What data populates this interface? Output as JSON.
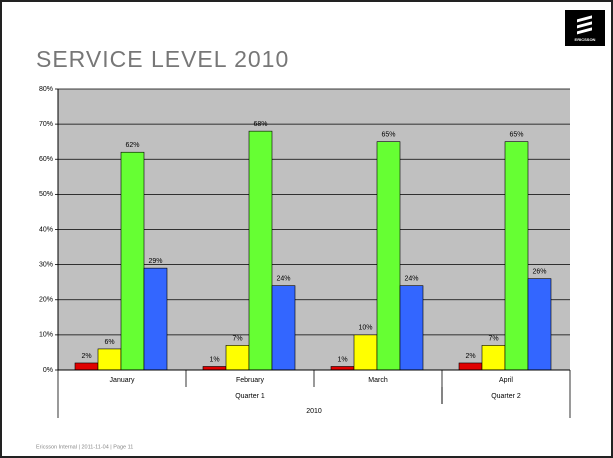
{
  "header": {
    "title": "SERVICE LEVEL 2010",
    "logo": "ERICSSON"
  },
  "footer": "Ericsson Internal  |  2011-11-04  |  Page 11",
  "chart_data": {
    "type": "bar",
    "categories": [
      "January",
      "February",
      "March",
      "April"
    ],
    "quarters": [
      {
        "label": "Quarter 1",
        "count": 3
      },
      {
        "label": "Quarter 2",
        "count": 1
      }
    ],
    "year": "2010",
    "series": [
      {
        "color": "#e00000",
        "values": [
          2,
          1,
          1,
          2
        ],
        "value_labels": [
          "2%",
          "1%",
          "1%",
          "2%"
        ]
      },
      {
        "color": "#ffff00",
        "values": [
          6,
          7,
          10,
          7
        ],
        "value_labels": [
          "6%",
          "7%",
          "10%",
          "7%"
        ]
      },
      {
        "color": "#66ff33",
        "values": [
          62,
          68,
          65,
          65
        ],
        "value_labels": [
          "62%",
          "68%",
          "65%",
          "65%"
        ]
      },
      {
        "color": "#3366ff",
        "values": [
          29,
          24,
          24,
          26
        ],
        "value_labels": [
          "29%",
          "24%",
          "24%",
          "26%"
        ]
      }
    ],
    "ylim": [
      0,
      80
    ],
    "yticks": [
      {
        "value": 0,
        "label": "0%"
      },
      {
        "value": 10,
        "label": "10%"
      },
      {
        "value": 20,
        "label": "20%"
      },
      {
        "value": 30,
        "label": "30%"
      },
      {
        "value": 40,
        "label": "40%"
      },
      {
        "value": 50,
        "label": "50%"
      },
      {
        "value": 60,
        "label": "60%"
      },
      {
        "value": 70,
        "label": "70%"
      },
      {
        "value": 80,
        "label": "80%"
      }
    ],
    "grid": true
  }
}
